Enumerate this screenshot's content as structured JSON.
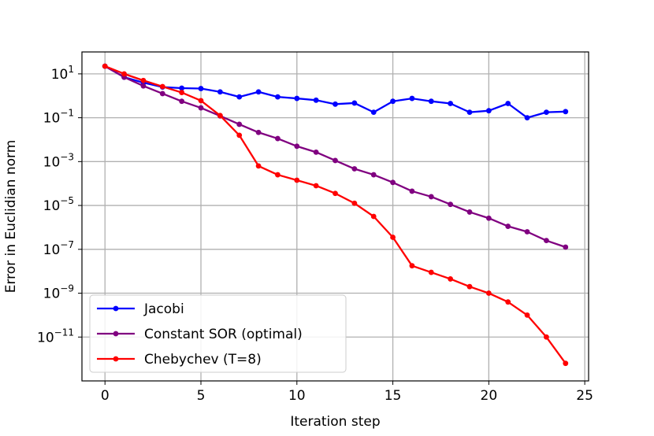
{
  "chart_data": {
    "type": "line",
    "xlabel": "Iteration step",
    "ylabel": "Error in Euclidian norm",
    "yscale": "log",
    "xlim": [
      -1.2,
      25.2
    ],
    "ylim_log10": [
      -13.0,
      2.0
    ],
    "grid": true,
    "legend_position": "lower-left",
    "x_ticks": [
      0,
      5,
      10,
      15,
      20,
      25
    ],
    "y_ticks": [
      {
        "exp": 1,
        "base": "10",
        "sup": "1"
      },
      {
        "exp": -1,
        "base": "10",
        "sup": "−1"
      },
      {
        "exp": -3,
        "base": "10",
        "sup": "−3"
      },
      {
        "exp": -5,
        "base": "10",
        "sup": "−5"
      },
      {
        "exp": -7,
        "base": "10",
        "sup": "−7"
      },
      {
        "exp": -9,
        "base": "10",
        "sup": "−9"
      },
      {
        "exp": -11,
        "base": "10",
        "sup": "−11"
      }
    ],
    "x": [
      0,
      1,
      2,
      3,
      4,
      5,
      6,
      7,
      8,
      9,
      10,
      11,
      12,
      13,
      14,
      15,
      16,
      17,
      18,
      19,
      20,
      21,
      22,
      23,
      24
    ],
    "series": [
      {
        "name": "Jacobi",
        "color": "#0000ff",
        "log10_values": [
          1.35,
          0.85,
          0.6,
          0.4,
          0.35,
          0.33,
          0.18,
          -0.05,
          0.18,
          -0.05,
          -0.12,
          -0.2,
          -0.38,
          -0.33,
          -0.75,
          -0.25,
          -0.12,
          -0.25,
          -0.35,
          -0.75,
          -0.68,
          -0.35,
          -1.0,
          -0.75,
          -0.72
        ]
      },
      {
        "name": "Constant SOR (optimal)",
        "color": "#800080",
        "log10_values": [
          1.35,
          0.85,
          0.45,
          0.1,
          -0.25,
          -0.55,
          -0.92,
          -1.3,
          -1.67,
          -1.95,
          -2.3,
          -2.57,
          -2.95,
          -3.33,
          -3.6,
          -3.95,
          -4.35,
          -4.6,
          -4.95,
          -5.3,
          -5.58,
          -5.95,
          -6.2,
          -6.6,
          -6.9
        ]
      },
      {
        "name": "Chebychev (T=8)",
        "color": "#ff0000",
        "log10_values": [
          1.35,
          1.0,
          0.7,
          0.42,
          0.15,
          -0.22,
          -0.9,
          -1.8,
          -3.2,
          -3.6,
          -3.85,
          -4.1,
          -4.45,
          -4.9,
          -5.5,
          -6.45,
          -7.75,
          -8.05,
          -8.35,
          -8.7,
          -9.0,
          -9.4,
          -10.0,
          -11.0,
          -12.2
        ]
      }
    ]
  }
}
